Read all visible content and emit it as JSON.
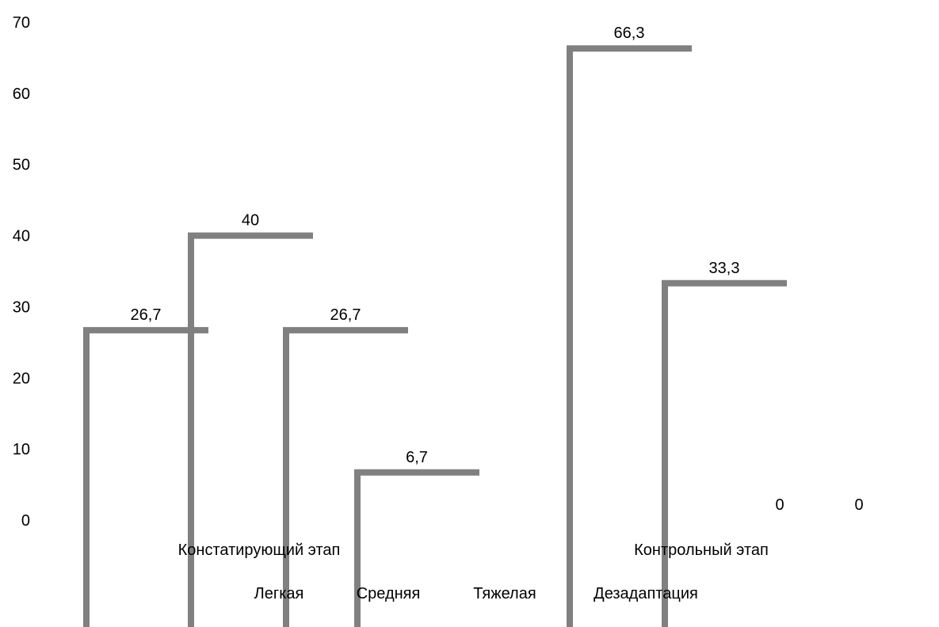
{
  "chart_data": {
    "type": "bar",
    "title": "",
    "xlabel": "",
    "ylabel": "",
    "ylim": [
      0,
      70
    ],
    "y_ticks": [
      "0",
      "10",
      "20",
      "30",
      "40",
      "50",
      "60",
      "70"
    ],
    "grid": false,
    "groups": [
      "Констатирующий этап",
      "Контрольный этап"
    ],
    "legend": {
      "placement": "bottom",
      "entries": [
        "Легкая",
        "Средняя",
        "Тяжелая",
        "Дезадаптация"
      ]
    },
    "series": [
      {
        "name": "Легкая",
        "values": [
          26.7,
          66.3
        ],
        "labels": [
          "26,7",
          "66,3"
        ]
      },
      {
        "name": "Средняя",
        "values": [
          40,
          33.3
        ],
        "labels": [
          "40",
          "33,3"
        ]
      },
      {
        "name": "Тяжелая",
        "values": [
          26.7,
          0
        ],
        "labels": [
          "26,7",
          "0"
        ]
      },
      {
        "name": "Дезадаптация",
        "values": [
          6.7,
          0
        ],
        "labels": [
          "6,7",
          "0"
        ]
      }
    ],
    "colors": {
      "bar_outline": "#808080"
    }
  }
}
